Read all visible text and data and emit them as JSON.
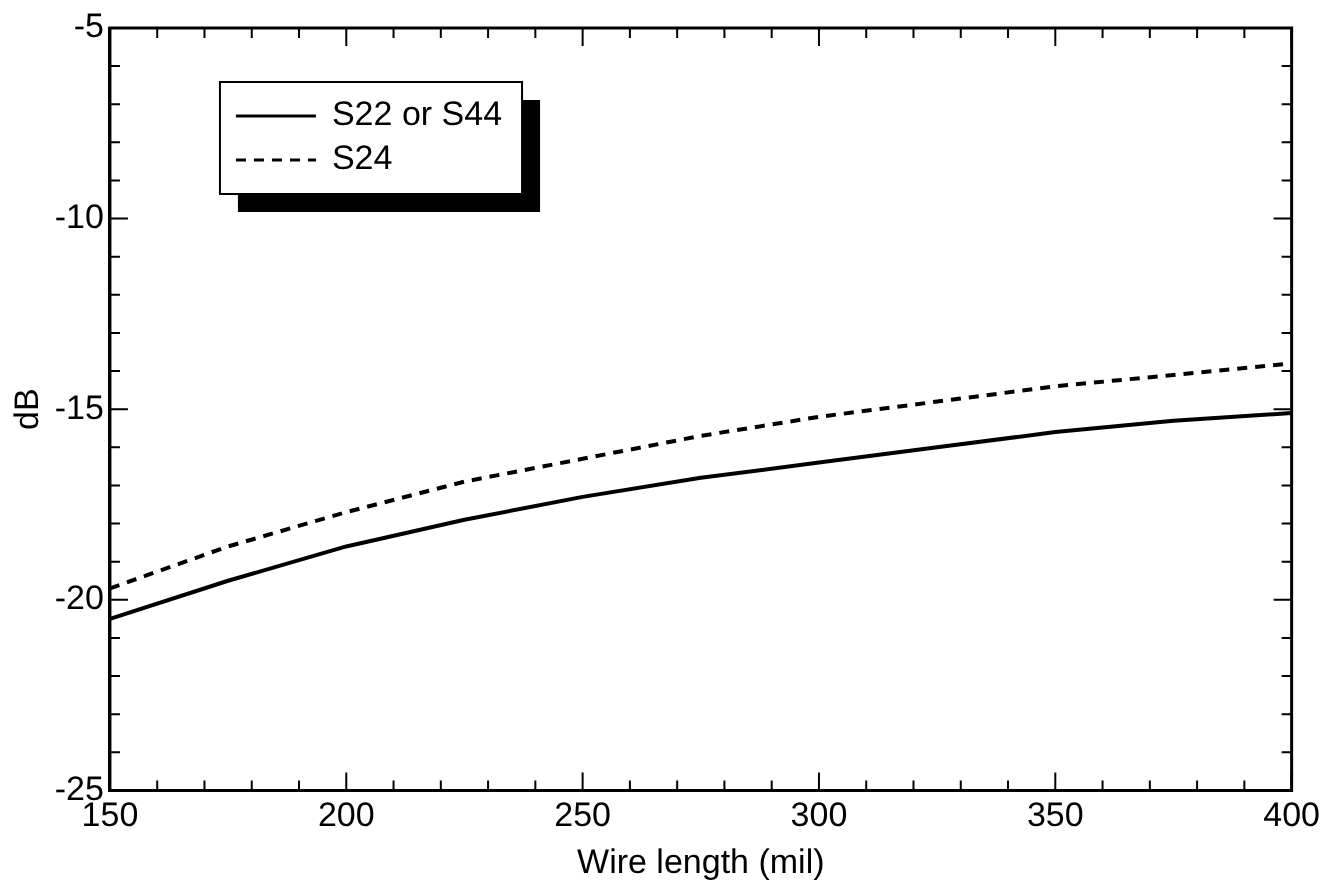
{
  "chart_data": {
    "type": "line",
    "xlabel": "Wire length (mil)",
    "ylabel": "dB",
    "x": [
      150,
      175,
      200,
      225,
      250,
      275,
      300,
      325,
      350,
      375,
      400
    ],
    "series": [
      {
        "name": "S22 or S44",
        "color": "#000000",
        "line_style": "solid",
        "values": [
          -20.5,
          -19.5,
          -18.6,
          -17.9,
          -17.3,
          -16.8,
          -16.4,
          -16.0,
          -15.6,
          -15.3,
          -15.1
        ]
      },
      {
        "name": "S24",
        "color": "#000000",
        "line_style": "dashed",
        "values": [
          -19.7,
          -18.6,
          -17.7,
          -16.9,
          -16.3,
          -15.7,
          -15.2,
          -14.8,
          -14.4,
          -14.1,
          -13.8
        ]
      }
    ],
    "xlim": [
      150,
      400
    ],
    "xticks": [
      150,
      {
        "value": 160,
        "label": null
      },
      {
        "value": 170,
        "label": null
      },
      {
        "value": 180,
        "label": null
      },
      {
        "value": 190,
        "label": null
      },
      200,
      {
        "value": 210,
        "label": null
      },
      {
        "value": 220,
        "label": null
      },
      {
        "value": 230,
        "label": null
      },
      {
        "value": 240,
        "label": null
      },
      250,
      {
        "value": 260,
        "label": null
      },
      {
        "value": 270,
        "label": null
      },
      {
        "value": 280,
        "label": null
      },
      {
        "value": 290,
        "label": null
      },
      300,
      {
        "value": 310,
        "label": null
      },
      {
        "value": 320,
        "label": null
      },
      {
        "value": 330,
        "label": null
      },
      {
        "value": 340,
        "label": null
      },
      350,
      {
        "value": 360,
        "label": null
      },
      {
        "value": 370,
        "label": null
      },
      {
        "value": 380,
        "label": null
      },
      {
        "value": 390,
        "label": null
      },
      400
    ],
    "ylim": [
      -25,
      -5
    ],
    "yticks": [
      -25,
      {
        "value": -24,
        "label": null
      },
      {
        "value": -23,
        "label": null
      },
      {
        "value": -22,
        "label": null
      },
      {
        "value": -21,
        "label": null
      },
      -20,
      {
        "value": -19,
        "label": null
      },
      {
        "value": -18,
        "label": null
      },
      {
        "value": -17,
        "label": null
      },
      {
        "value": -16,
        "label": null
      },
      -15,
      {
        "value": -14,
        "label": null
      },
      {
        "value": -13,
        "label": null
      },
      {
        "value": -12,
        "label": null
      },
      {
        "value": -11,
        "label": null
      },
      -10,
      {
        "value": -9,
        "label": null
      },
      {
        "value": -8,
        "label": null
      },
      {
        "value": -7,
        "label": null
      },
      {
        "value": -6,
        "label": null
      },
      -5
    ],
    "grid": false,
    "legend": "top left",
    "marker": "none"
  }
}
